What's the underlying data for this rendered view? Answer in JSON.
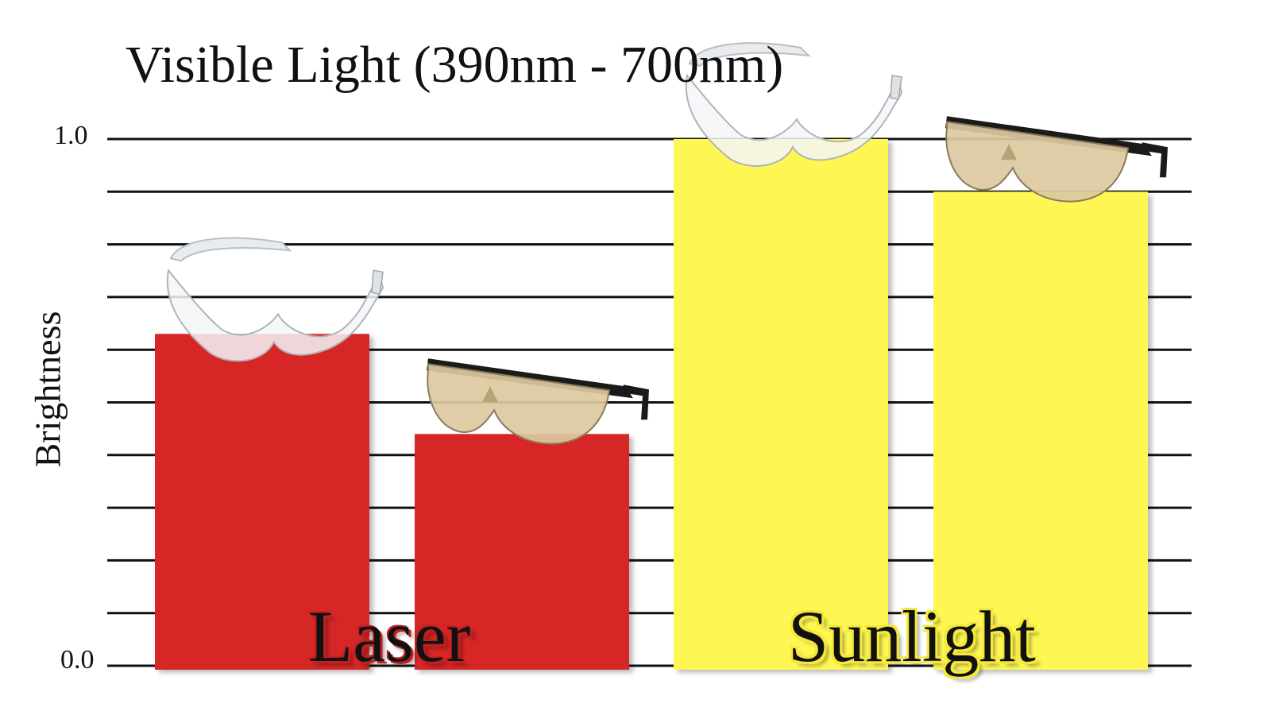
{
  "chart_data": {
    "type": "bar",
    "title": "Visible Light (390nm - 700nm)",
    "ylabel": "Brightness",
    "ylim": [
      0.0,
      1.0
    ],
    "ytick_labels": [
      "0.0",
      "1.0"
    ],
    "grid": true,
    "categories": [
      "Laser",
      "Sunlight"
    ],
    "series": [
      {
        "values": [
          0.63,
          1.0
        ],
        "icon": "clear-safety-glasses-icon"
      },
      {
        "values": [
          0.44,
          0.9
        ],
        "icon": "tinted-safety-glasses-icon"
      }
    ],
    "colors": {
      "Laser": "#d62628",
      "Sunlight": "#fef752",
      "gridline": "#111111"
    }
  }
}
